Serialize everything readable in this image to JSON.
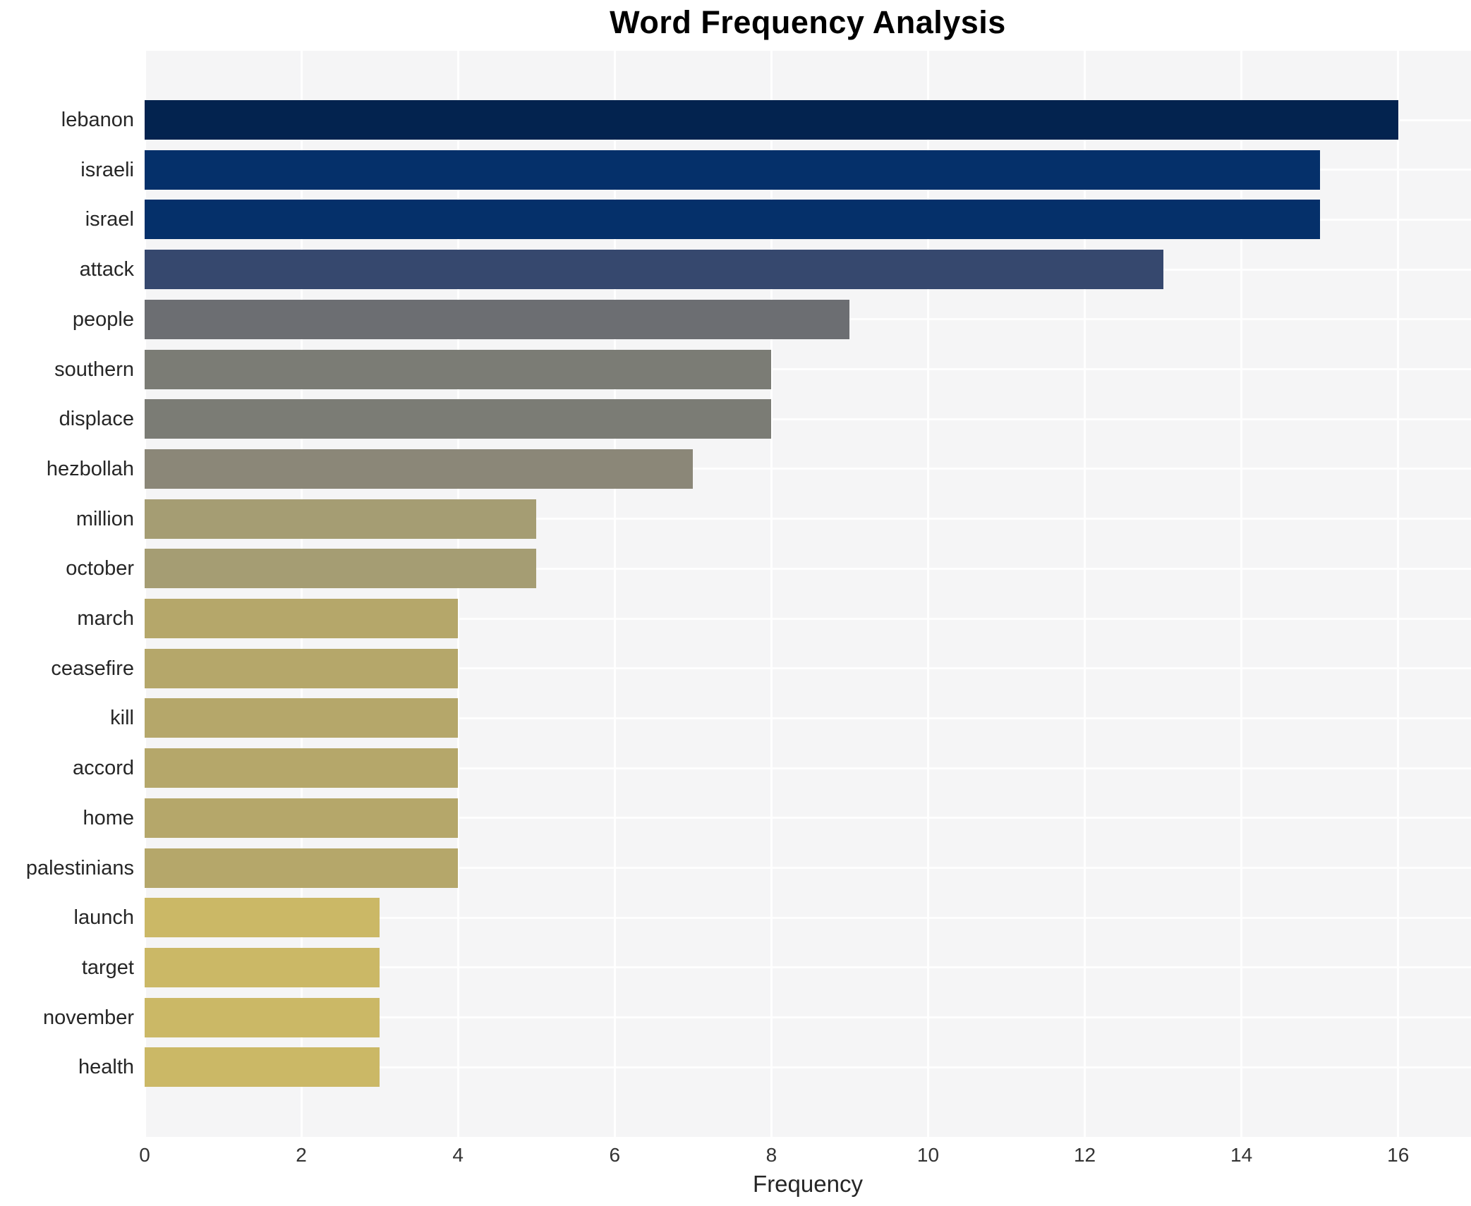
{
  "title": "Word Frequency Analysis",
  "chart_data": {
    "type": "bar",
    "orientation": "horizontal",
    "title": "Word Frequency Analysis",
    "xlabel": "Frequency",
    "ylabel": "",
    "categories": [
      "lebanon",
      "israeli",
      "israel",
      "attack",
      "people",
      "southern",
      "displace",
      "hezbollah",
      "million",
      "october",
      "march",
      "ceasefire",
      "kill",
      "accord",
      "home",
      "palestinians",
      "launch",
      "target",
      "november",
      "health"
    ],
    "values": [
      16,
      15,
      15,
      13,
      9,
      8,
      8,
      7,
      5,
      5,
      4,
      4,
      4,
      4,
      4,
      4,
      3,
      3,
      3,
      3
    ],
    "bar_colors": [
      "#03234f",
      "#05306a",
      "#05306a",
      "#36486e",
      "#6c6e72",
      "#7b7c75",
      "#7b7c75",
      "#8b8778",
      "#a59d73",
      "#a59d73",
      "#b5a76a",
      "#b5a76a",
      "#b5a76a",
      "#b5a76a",
      "#b5a76a",
      "#b5a76a",
      "#cbb866",
      "#cbb866",
      "#cbb866",
      "#cbb866"
    ],
    "xticks": [
      0,
      2,
      4,
      6,
      8,
      10,
      12,
      14,
      16
    ],
    "xlim": [
      0,
      16.93
    ],
    "grid": true,
    "plot_background": "#f5f5f6",
    "grid_color": "#ffffff",
    "legend": "none"
  }
}
